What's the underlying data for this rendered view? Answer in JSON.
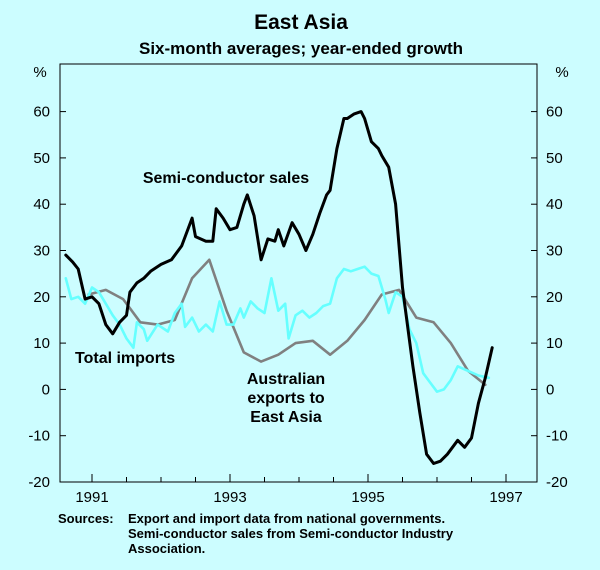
{
  "chart_data": {
    "type": "line",
    "title": "East Asia",
    "subtitle": "Six-month averages; year-ended growth",
    "y_unit_label": "%",
    "ylim": [
      -20,
      70
    ],
    "y_ticks": [
      60,
      50,
      40,
      30,
      20,
      10,
      0,
      -10,
      -20
    ],
    "xlim": [
      1990.6,
      1997.6
    ],
    "x_ticks": [
      {
        "value": 1991,
        "label": "1991"
      },
      {
        "value": 1993,
        "label": "1993"
      },
      {
        "value": 1995,
        "label": "1995"
      },
      {
        "value": 1997,
        "label": "1997"
      }
    ],
    "x_minor_ticks": [
      1990.5,
      1991.5,
      1992,
      1992.5,
      1993.5,
      1994,
      1994.5,
      1995.5,
      1996,
      1996.5
    ],
    "grid": false,
    "series": [
      {
        "name": "Semi-conductor sales",
        "color": "#000000",
        "annotation": [
          "Semi-conductor sales"
        ],
        "points": [
          [
            1990.62,
            29
          ],
          [
            1990.72,
            27.5
          ],
          [
            1990.8,
            26
          ],
          [
            1990.9,
            19.5
          ],
          [
            1991.0,
            20
          ],
          [
            1991.1,
            18.5
          ],
          [
            1991.2,
            14
          ],
          [
            1991.3,
            12
          ],
          [
            1991.4,
            14.5
          ],
          [
            1991.5,
            16
          ],
          [
            1991.55,
            21
          ],
          [
            1991.65,
            23
          ],
          [
            1991.75,
            24
          ],
          [
            1991.85,
            25.5
          ],
          [
            1992.0,
            27
          ],
          [
            1992.15,
            28
          ],
          [
            1992.3,
            31
          ],
          [
            1992.45,
            37
          ],
          [
            1992.5,
            33
          ],
          [
            1992.65,
            32
          ],
          [
            1992.75,
            32
          ],
          [
            1992.8,
            39
          ],
          [
            1992.9,
            37
          ],
          [
            1993.0,
            34.5
          ],
          [
            1993.1,
            35
          ],
          [
            1993.2,
            40
          ],
          [
            1993.25,
            42
          ],
          [
            1993.35,
            37.5
          ],
          [
            1993.45,
            28
          ],
          [
            1993.55,
            32.5
          ],
          [
            1993.65,
            32
          ],
          [
            1993.7,
            34.5
          ],
          [
            1993.78,
            31
          ],
          [
            1993.9,
            36
          ],
          [
            1994.0,
            33.5
          ],
          [
            1994.1,
            30
          ],
          [
            1994.2,
            33.5
          ],
          [
            1994.3,
            38
          ],
          [
            1994.4,
            42
          ],
          [
            1994.45,
            43
          ],
          [
            1994.55,
            52
          ],
          [
            1994.65,
            58.5
          ],
          [
            1994.7,
            58.5
          ],
          [
            1994.8,
            59.5
          ],
          [
            1994.9,
            60
          ],
          [
            1994.95,
            58.5
          ],
          [
            1995.05,
            53.5
          ],
          [
            1995.15,
            52
          ],
          [
            1995.2,
            50.5
          ],
          [
            1995.3,
            48
          ],
          [
            1995.4,
            40
          ],
          [
            1995.5,
            22
          ],
          [
            1995.65,
            5
          ],
          [
            1995.75,
            -5
          ],
          [
            1995.85,
            -14
          ],
          [
            1995.95,
            -16
          ],
          [
            1996.05,
            -15.5
          ],
          [
            1996.15,
            -14
          ],
          [
            1996.3,
            -11
          ],
          [
            1996.4,
            -12.5
          ],
          [
            1996.5,
            -10.5
          ],
          [
            1996.6,
            -3
          ],
          [
            1996.7,
            2.5
          ],
          [
            1996.8,
            9
          ]
        ]
      },
      {
        "name": "Total imports",
        "color": "#66ffff",
        "annotation": [
          "Total imports"
        ],
        "points": [
          [
            1990.62,
            24
          ],
          [
            1990.7,
            19.5
          ],
          [
            1990.8,
            20
          ],
          [
            1990.9,
            18.5
          ],
          [
            1991.0,
            22
          ],
          [
            1991.1,
            21
          ],
          [
            1991.2,
            18.5
          ],
          [
            1991.3,
            16
          ],
          [
            1991.4,
            14
          ],
          [
            1991.5,
            11
          ],
          [
            1991.6,
            9
          ],
          [
            1991.65,
            14.5
          ],
          [
            1991.75,
            13
          ],
          [
            1991.8,
            10.5
          ],
          [
            1991.95,
            14
          ],
          [
            1992.1,
            12.5
          ],
          [
            1992.2,
            16.5
          ],
          [
            1992.3,
            18.5
          ],
          [
            1992.35,
            13.5
          ],
          [
            1992.45,
            15.5
          ],
          [
            1992.55,
            12.5
          ],
          [
            1992.65,
            14
          ],
          [
            1992.75,
            12.5
          ],
          [
            1992.85,
            19
          ],
          [
            1992.95,
            14
          ],
          [
            1993.05,
            14
          ],
          [
            1993.15,
            17.5
          ],
          [
            1993.2,
            15.5
          ],
          [
            1993.3,
            19
          ],
          [
            1993.4,
            17.5
          ],
          [
            1993.5,
            16.5
          ],
          [
            1993.6,
            24
          ],
          [
            1993.7,
            17
          ],
          [
            1993.8,
            18.5
          ],
          [
            1993.85,
            11
          ],
          [
            1993.95,
            16
          ],
          [
            1994.05,
            17
          ],
          [
            1994.15,
            15.5
          ],
          [
            1994.25,
            16.5
          ],
          [
            1994.35,
            18
          ],
          [
            1994.45,
            18.5
          ],
          [
            1994.55,
            24
          ],
          [
            1994.65,
            26
          ],
          [
            1994.75,
            25.5
          ],
          [
            1994.85,
            26
          ],
          [
            1994.95,
            26.5
          ],
          [
            1995.05,
            25
          ],
          [
            1995.15,
            24.5
          ],
          [
            1995.25,
            19.5
          ],
          [
            1995.3,
            16.5
          ],
          [
            1995.4,
            21
          ],
          [
            1995.5,
            20
          ],
          [
            1995.6,
            13
          ],
          [
            1995.7,
            10
          ],
          [
            1995.8,
            3.5
          ],
          [
            1995.9,
            1.5
          ],
          [
            1996.0,
            -0.5
          ],
          [
            1996.1,
            0
          ],
          [
            1996.2,
            2
          ],
          [
            1996.3,
            5
          ],
          [
            1996.45,
            4
          ],
          [
            1996.6,
            3
          ],
          [
            1996.75,
            2.5
          ]
        ]
      },
      {
        "name": "Australian exports to East Asia",
        "color": "#808080",
        "annotation": [
          "Australian",
          "exports to",
          "East Asia"
        ],
        "points": [
          [
            1990.95,
            20.5
          ],
          [
            1991.2,
            21.5
          ],
          [
            1991.45,
            19.5
          ],
          [
            1991.7,
            14.5
          ],
          [
            1991.95,
            14
          ],
          [
            1992.2,
            15
          ],
          [
            1992.45,
            24
          ],
          [
            1992.7,
            28
          ],
          [
            1992.95,
            17
          ],
          [
            1993.2,
            8
          ],
          [
            1993.45,
            6
          ],
          [
            1993.7,
            7.5
          ],
          [
            1993.95,
            10
          ],
          [
            1994.2,
            10.5
          ],
          [
            1994.45,
            7.5
          ],
          [
            1994.7,
            10.5
          ],
          [
            1994.95,
            15
          ],
          [
            1995.2,
            20.5
          ],
          [
            1995.45,
            21.5
          ],
          [
            1995.7,
            15.5
          ],
          [
            1995.95,
            14.5
          ],
          [
            1996.2,
            10
          ],
          [
            1996.45,
            4
          ],
          [
            1996.7,
            1
          ]
        ]
      }
    ],
    "sources_label": "Sources:",
    "sources_lines": [
      "Export and import data from national governments.",
      "Semi-conductor sales from Semi-conductor Industry",
      "Association."
    ]
  }
}
